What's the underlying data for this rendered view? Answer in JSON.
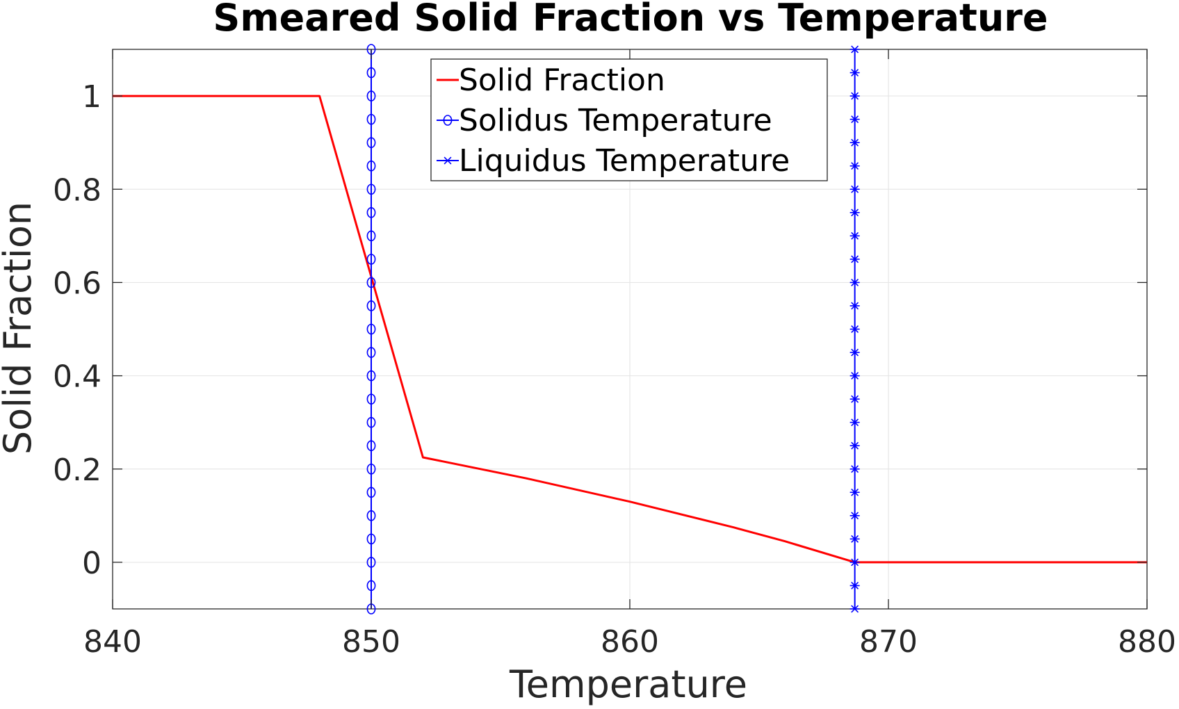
{
  "chart_data": {
    "type": "line",
    "title": "Smeared Solid Fraction vs Temperature",
    "xlabel": "Temperature",
    "ylabel": "Solid Fraction",
    "xlim": [
      840,
      880
    ],
    "ylim": [
      -0.1,
      1.1
    ],
    "xticks": [
      840,
      850,
      860,
      870,
      880
    ],
    "yticks": [
      0,
      0.2,
      0.4,
      0.6,
      0.8,
      1
    ],
    "ytick_labels": [
      "0",
      "0.2",
      "0.4",
      "0.6",
      "0.8",
      "1"
    ],
    "grid": true,
    "legend_position": "top-center",
    "series": [
      {
        "name": "Solid Fraction",
        "kind": "line",
        "color": "#ff0000",
        "x": [
          840,
          848,
          852,
          856,
          860,
          864,
          866,
          868.7,
          880
        ],
        "y": [
          1,
          1,
          0.225,
          0.18,
          0.13,
          0.075,
          0.045,
          0,
          0
        ]
      },
      {
        "name": "Solidus Temperature",
        "kind": "vline",
        "marker": "circle",
        "color": "#0000ff",
        "x_value": 850,
        "marker_y": [
          -0.1,
          -0.05,
          0,
          0.05,
          0.1,
          0.15,
          0.2,
          0.25,
          0.3,
          0.35,
          0.4,
          0.45,
          0.5,
          0.55,
          0.6,
          0.65,
          0.7,
          0.75,
          0.8,
          0.85,
          0.9,
          0.95,
          1,
          1.05,
          1.1
        ]
      },
      {
        "name": "Liquidus Temperature",
        "kind": "vline",
        "marker": "asterisk",
        "color": "#0000ff",
        "x_value": 868.7,
        "marker_y": [
          -0.1,
          -0.05,
          0,
          0.05,
          0.1,
          0.15,
          0.2,
          0.25,
          0.3,
          0.35,
          0.4,
          0.45,
          0.5,
          0.55,
          0.6,
          0.65,
          0.7,
          0.75,
          0.8,
          0.85,
          0.9,
          0.95,
          1,
          1.05,
          1.1
        ]
      }
    ]
  }
}
